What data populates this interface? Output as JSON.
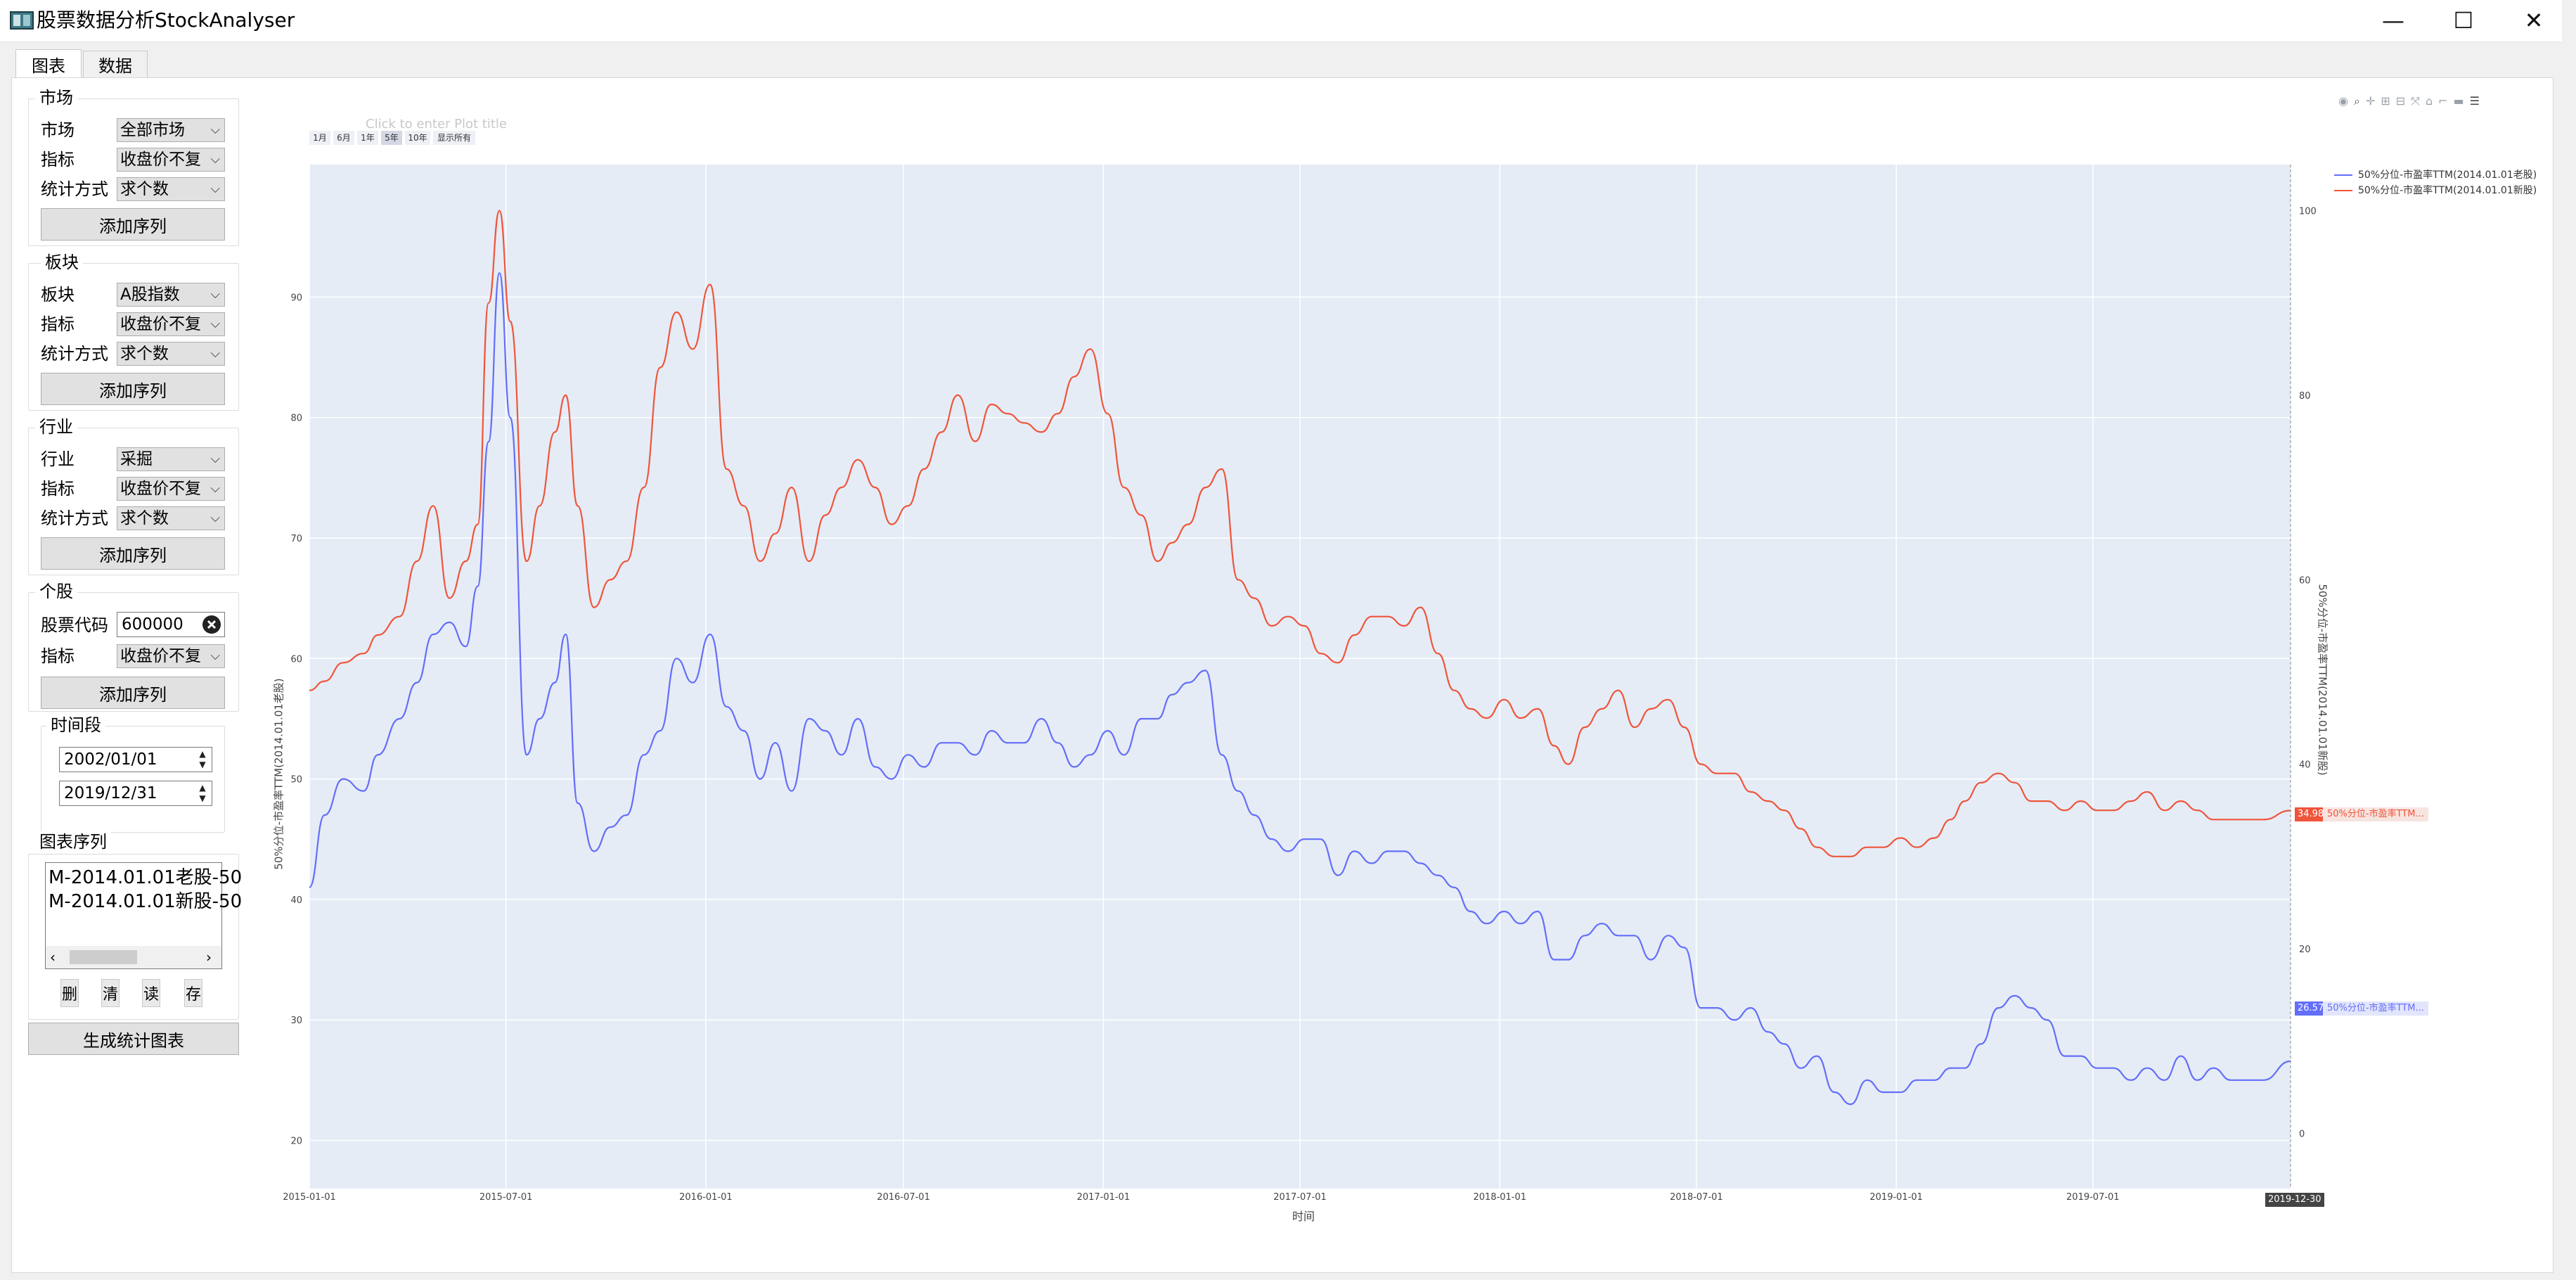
{
  "window": {
    "title": "股票数据分析StockAnalyser",
    "controls": [
      "—",
      "☐",
      "✕"
    ]
  },
  "tabs": [
    {
      "label": "图表",
      "active": true
    },
    {
      "label": "数据",
      "active": false
    }
  ],
  "sidebar": {
    "market": {
      "title": "市场",
      "rows": [
        {
          "label": "市场",
          "value": "全部市场"
        },
        {
          "label": "指标",
          "value": "收盘价不复"
        },
        {
          "label": "统计方式",
          "value": "求个数"
        }
      ],
      "add_label": "添加序列"
    },
    "sector": {
      "title": "板块",
      "rows": [
        {
          "label": "板块",
          "value": "A股指数"
        },
        {
          "label": "指标",
          "value": "收盘价不复"
        },
        {
          "label": "统计方式",
          "value": "求个数"
        }
      ],
      "add_label": "添加序列"
    },
    "industry": {
      "title": "行业",
      "rows": [
        {
          "label": "行业",
          "value": "采掘"
        },
        {
          "label": "指标",
          "value": "收盘价不复"
        },
        {
          "label": "统计方式",
          "value": "求个数"
        }
      ],
      "add_label": "添加序列"
    },
    "stock": {
      "title": "个股",
      "code_label": "股票代码",
      "code_value": "600000",
      "metric_label": "指标",
      "metric_value": "收盘价不复",
      "add_label": "添加序列"
    },
    "period": {
      "title": "时间段",
      "start": "2002/01/01",
      "end": "2019/12/31"
    },
    "series": {
      "title": "图表序列",
      "items": [
        "M-2014.01.01老股-50",
        "M-2014.01.01新股-50"
      ],
      "buttons": [
        "删",
        "清",
        "读",
        "存"
      ]
    },
    "generate_label": "生成统计图表"
  },
  "chart": {
    "title_placeholder": "Click to enter Plot title",
    "range_buttons": [
      "1月",
      "6月",
      "1年",
      "5年",
      "10年",
      "显示所有"
    ],
    "xlabel": "时间",
    "left_ylabel": "50%分位-市盈率TTM(2014.01.01老股)",
    "right_ylabel": "50%分位-市盈率TTM(2014.01.01新股)",
    "hover_x": "2019-12-30",
    "hover_blue_value": "26.57",
    "hover_red_value": "34.98",
    "hover_blue_name": "50%分位-市盈率TTM...",
    "hover_red_name": "50%分位-市盈率TTM...",
    "colors": {
      "blue": "#636efa",
      "red": "#ef553b",
      "plot_bg": "#e5ecf6"
    }
  },
  "chart_data": {
    "type": "line",
    "xlabel": "时间",
    "x_ticks": [
      "2015-01-01",
      "2015-07-01",
      "2016-01-01",
      "2016-07-01",
      "2017-01-01",
      "2017-07-01",
      "2018-01-01",
      "2018-07-01",
      "2019-01-01",
      "2019-07-01"
    ],
    "y_left": {
      "label": "50%分位-市盈率TTM(2014.01.01老股)",
      "ticks": [
        20,
        30,
        40,
        50,
        60,
        70,
        80,
        90
      ],
      "range": [
        16,
        101
      ]
    },
    "y_right": {
      "label": "50%分位-市盈率TTM(2014.01.01新股)",
      "ticks": [
        0,
        20,
        40,
        60,
        80,
        100
      ],
      "range": [
        -6,
        105
      ]
    },
    "grid": true,
    "legend_position": "top-right",
    "series": [
      {
        "name": "50%分位-市盈率TTM(2014.01.01老股)",
        "axis": "left",
        "color": "#636efa",
        "x": [
          "2015-01-01",
          "2015-01-15",
          "2015-02-01",
          "2015-02-20",
          "2015-03-05",
          "2015-03-25",
          "2015-04-10",
          "2015-04-25",
          "2015-05-10",
          "2015-05-25",
          "2015-06-05",
          "2015-06-15",
          "2015-06-25",
          "2015-07-05",
          "2015-07-20",
          "2015-08-01",
          "2015-08-15",
          "2015-08-25",
          "2015-09-05",
          "2015-09-20",
          "2015-10-05",
          "2015-10-20",
          "2015-11-05",
          "2015-11-20",
          "2015-12-05",
          "2015-12-20",
          "2016-01-05",
          "2016-01-20",
          "2016-02-05",
          "2016-02-20",
          "2016-03-05",
          "2016-03-20",
          "2016-04-05",
          "2016-04-20",
          "2016-05-05",
          "2016-05-20",
          "2016-06-05",
          "2016-06-20",
          "2016-07-05",
          "2016-07-20",
          "2016-08-05",
          "2016-08-20",
          "2016-09-05",
          "2016-09-20",
          "2016-10-05",
          "2016-10-20",
          "2016-11-05",
          "2016-11-20",
          "2016-12-05",
          "2016-12-20",
          "2017-01-05",
          "2017-01-20",
          "2017-02-05",
          "2017-02-20",
          "2017-03-05",
          "2017-03-20",
          "2017-04-05",
          "2017-04-20",
          "2017-05-05",
          "2017-05-20",
          "2017-06-05",
          "2017-06-20",
          "2017-07-05",
          "2017-07-20",
          "2017-08-05",
          "2017-08-20",
          "2017-09-05",
          "2017-09-20",
          "2017-10-05",
          "2017-10-20",
          "2017-11-05",
          "2017-11-20",
          "2017-12-05",
          "2017-12-20",
          "2018-01-05",
          "2018-01-20",
          "2018-02-05",
          "2018-02-20",
          "2018-03-05",
          "2018-03-20",
          "2018-04-05",
          "2018-04-20",
          "2018-05-05",
          "2018-05-20",
          "2018-06-05",
          "2018-06-20",
          "2018-07-05",
          "2018-07-20",
          "2018-08-05",
          "2018-08-20",
          "2018-09-05",
          "2018-09-20",
          "2018-10-05",
          "2018-10-20",
          "2018-11-05",
          "2018-11-20",
          "2018-12-05",
          "2018-12-20",
          "2019-01-05",
          "2019-01-20",
          "2019-02-05",
          "2019-02-20",
          "2019-03-05",
          "2019-03-20",
          "2019-04-05",
          "2019-04-20",
          "2019-05-05",
          "2019-05-20",
          "2019-06-05",
          "2019-06-20",
          "2019-07-05",
          "2019-07-20",
          "2019-08-05",
          "2019-08-20",
          "2019-09-05",
          "2019-09-20",
          "2019-10-05",
          "2019-10-20",
          "2019-11-05",
          "2019-11-20",
          "2019-12-05",
          "2019-12-30"
        ],
        "y": [
          41,
          47,
          50,
          49,
          52,
          55,
          58,
          62,
          63,
          61,
          66,
          78,
          92,
          80,
          52,
          55,
          58,
          62,
          48,
          44,
          46,
          47,
          52,
          54,
          60,
          58,
          62,
          56,
          54,
          50,
          53,
          49,
          55,
          54,
          52,
          55,
          51,
          50,
          52,
          51,
          53,
          53,
          52,
          54,
          53,
          53,
          55,
          53,
          51,
          52,
          54,
          52,
          55,
          55,
          57,
          58,
          59,
          52,
          49,
          47,
          45,
          44,
          45,
          45,
          42,
          44,
          43,
          44,
          44,
          43,
          42,
          41,
          39,
          38,
          39,
          38,
          39,
          35,
          35,
          37,
          38,
          37,
          37,
          35,
          37,
          36,
          31,
          31,
          30,
          31,
          29,
          28,
          26,
          27,
          24,
          23,
          25,
          24,
          24,
          25,
          25,
          26,
          26,
          28,
          31,
          32,
          31,
          30,
          27,
          27,
          26,
          26,
          25,
          26,
          25,
          27,
          25,
          26,
          25,
          25,
          25,
          26.57
        ]
      },
      {
        "name": "50%分位-市盈率TTM(2014.01.01新股)",
        "axis": "right",
        "color": "#ef553b",
        "x": [
          "2015-01-01",
          "2015-01-15",
          "2015-02-01",
          "2015-02-20",
          "2015-03-05",
          "2015-03-25",
          "2015-04-10",
          "2015-04-25",
          "2015-05-10",
          "2015-05-25",
          "2015-06-05",
          "2015-06-15",
          "2015-06-25",
          "2015-07-05",
          "2015-07-20",
          "2015-08-01",
          "2015-08-15",
          "2015-08-25",
          "2015-09-05",
          "2015-09-20",
          "2015-10-05",
          "2015-10-20",
          "2015-11-05",
          "2015-11-20",
          "2015-12-05",
          "2015-12-20",
          "2016-01-05",
          "2016-01-20",
          "2016-02-05",
          "2016-02-20",
          "2016-03-05",
          "2016-03-20",
          "2016-04-05",
          "2016-04-20",
          "2016-05-05",
          "2016-05-20",
          "2016-06-05",
          "2016-06-20",
          "2016-07-05",
          "2016-07-20",
          "2016-08-05",
          "2016-08-20",
          "2016-09-05",
          "2016-09-20",
          "2016-10-05",
          "2016-10-20",
          "2016-11-05",
          "2016-11-20",
          "2016-12-05",
          "2016-12-20",
          "2017-01-05",
          "2017-01-20",
          "2017-02-05",
          "2017-02-20",
          "2017-03-05",
          "2017-03-20",
          "2017-04-05",
          "2017-04-20",
          "2017-05-05",
          "2017-05-20",
          "2017-06-05",
          "2017-06-20",
          "2017-07-05",
          "2017-07-20",
          "2017-08-05",
          "2017-08-20",
          "2017-09-05",
          "2017-09-20",
          "2017-10-05",
          "2017-10-20",
          "2017-11-05",
          "2017-11-20",
          "2017-12-05",
          "2017-12-20",
          "2018-01-05",
          "2018-01-20",
          "2018-02-05",
          "2018-02-20",
          "2018-03-05",
          "2018-03-20",
          "2018-04-05",
          "2018-04-20",
          "2018-05-05",
          "2018-05-20",
          "2018-06-05",
          "2018-06-20",
          "2018-07-05",
          "2018-07-20",
          "2018-08-05",
          "2018-08-20",
          "2018-09-05",
          "2018-09-20",
          "2018-10-05",
          "2018-10-20",
          "2018-11-05",
          "2018-11-20",
          "2018-12-05",
          "2018-12-20",
          "2019-01-05",
          "2019-01-20",
          "2019-02-05",
          "2019-02-20",
          "2019-03-05",
          "2019-03-20",
          "2019-04-05",
          "2019-04-20",
          "2019-05-05",
          "2019-05-20",
          "2019-06-05",
          "2019-06-20",
          "2019-07-05",
          "2019-07-20",
          "2019-08-05",
          "2019-08-20",
          "2019-09-05",
          "2019-09-20",
          "2019-10-05",
          "2019-10-20",
          "2019-11-05",
          "2019-11-20",
          "2019-12-05",
          "2019-12-30"
        ],
        "y": [
          48,
          49,
          51,
          52,
          54,
          56,
          62,
          68,
          58,
          62,
          66,
          90,
          100,
          88,
          62,
          68,
          76,
          80,
          68,
          57,
          60,
          62,
          70,
          83,
          89,
          85,
          92,
          72,
          68,
          62,
          65,
          70,
          62,
          67,
          70,
          73,
          70,
          66,
          68,
          72,
          76,
          80,
          75,
          79,
          78,
          77,
          76,
          78,
          82,
          85,
          78,
          70,
          67,
          62,
          64,
          66,
          70,
          72,
          60,
          58,
          55,
          56,
          55,
          52,
          51,
          54,
          56,
          56,
          55,
          57,
          52,
          48,
          46,
          45,
          47,
          45,
          46,
          42,
          40,
          44,
          46,
          48,
          44,
          46,
          47,
          44,
          40,
          39,
          39,
          37,
          36,
          35,
          33,
          31,
          30,
          30,
          31,
          31,
          32,
          31,
          32,
          34,
          36,
          38,
          39,
          38,
          36,
          36,
          35,
          36,
          35,
          35,
          36,
          37,
          35,
          36,
          35,
          34,
          34,
          34,
          34,
          34.98
        ]
      }
    ]
  }
}
